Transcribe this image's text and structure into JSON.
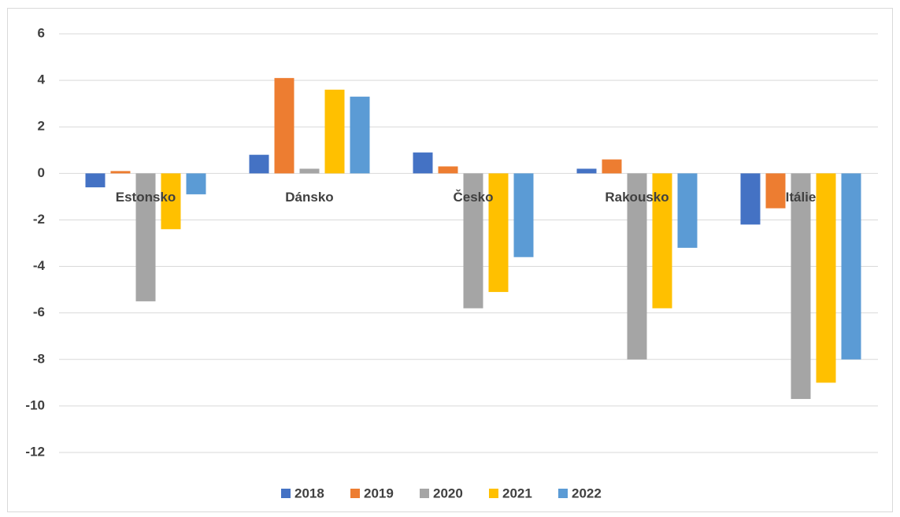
{
  "chart_data": {
    "type": "bar",
    "categories": [
      "Estonsko",
      "Dánsko",
      "Česko",
      "Rakousko",
      "Itálie"
    ],
    "series": [
      {
        "name": "2018",
        "color": "#4472c4",
        "values": [
          -0.6,
          0.8,
          0.9,
          0.2,
          -2.2
        ]
      },
      {
        "name": "2019",
        "color": "#ed7d31",
        "values": [
          0.1,
          4.1,
          0.3,
          0.6,
          -1.5
        ]
      },
      {
        "name": "2020",
        "color": "#a5a5a5",
        "values": [
          -5.5,
          0.2,
          -5.8,
          -8.0,
          -9.7
        ]
      },
      {
        "name": "2021",
        "color": "#ffc000",
        "values": [
          -2.4,
          3.6,
          -5.1,
          -5.8,
          -9.0
        ]
      },
      {
        "name": "2022",
        "color": "#5b9bd5",
        "values": [
          -0.9,
          3.3,
          -3.6,
          -3.2,
          -8.0
        ]
      }
    ],
    "ylim": [
      -12,
      6
    ],
    "yticks": [
      -12,
      -10,
      -8,
      -6,
      -4,
      -2,
      0,
      2,
      4,
      6
    ],
    "grid": true,
    "legend": "bottom"
  }
}
